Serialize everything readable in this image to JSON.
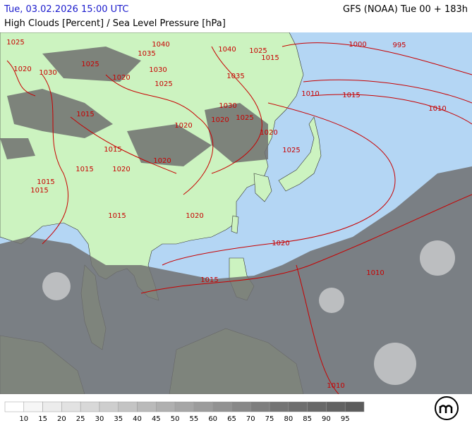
{
  "header": {
    "valid_time": "Tue, 03.02.2026 15:00 UTC",
    "model_run": "GFS (NOAA) Tue 00 + 183h",
    "parameter": "High Clouds [Percent] / Sea Level Pressure [hPa]"
  },
  "isobar_labels": [
    "1025",
    "1020",
    "1030",
    "1025",
    "1035",
    "1040",
    "1030",
    "1025",
    "1020",
    "1015",
    "1015",
    "1015",
    "1020",
    "1020",
    "1020",
    "1015",
    "1015",
    "1015",
    "1020",
    "1040",
    "1025",
    "1015",
    "1035",
    "1030",
    "1025",
    "1020",
    "1020",
    "1025",
    "1010",
    "1015",
    "1000",
    "995",
    "1010",
    "1020",
    "1010",
    "1015",
    "1010"
  ],
  "colorbar": {
    "labels": [
      "10",
      "15",
      "20",
      "25",
      "30",
      "35",
      "40",
      "45",
      "50",
      "55",
      "60",
      "65",
      "70",
      "75",
      "80",
      "85",
      "90",
      "95"
    ],
    "colors": [
      "#ffffff",
      "#f6f6f6",
      "#ececec",
      "#e2e2e2",
      "#d8d8d8",
      "#cecece",
      "#c4c4c4",
      "#bababa",
      "#b0b0b0",
      "#a6a6a6",
      "#9c9c9c",
      "#929292",
      "#888888",
      "#7e7e7e",
      "#747474",
      "#6e6e6e",
      "#686868",
      "#626262",
      "#5c5c5c"
    ]
  }
}
